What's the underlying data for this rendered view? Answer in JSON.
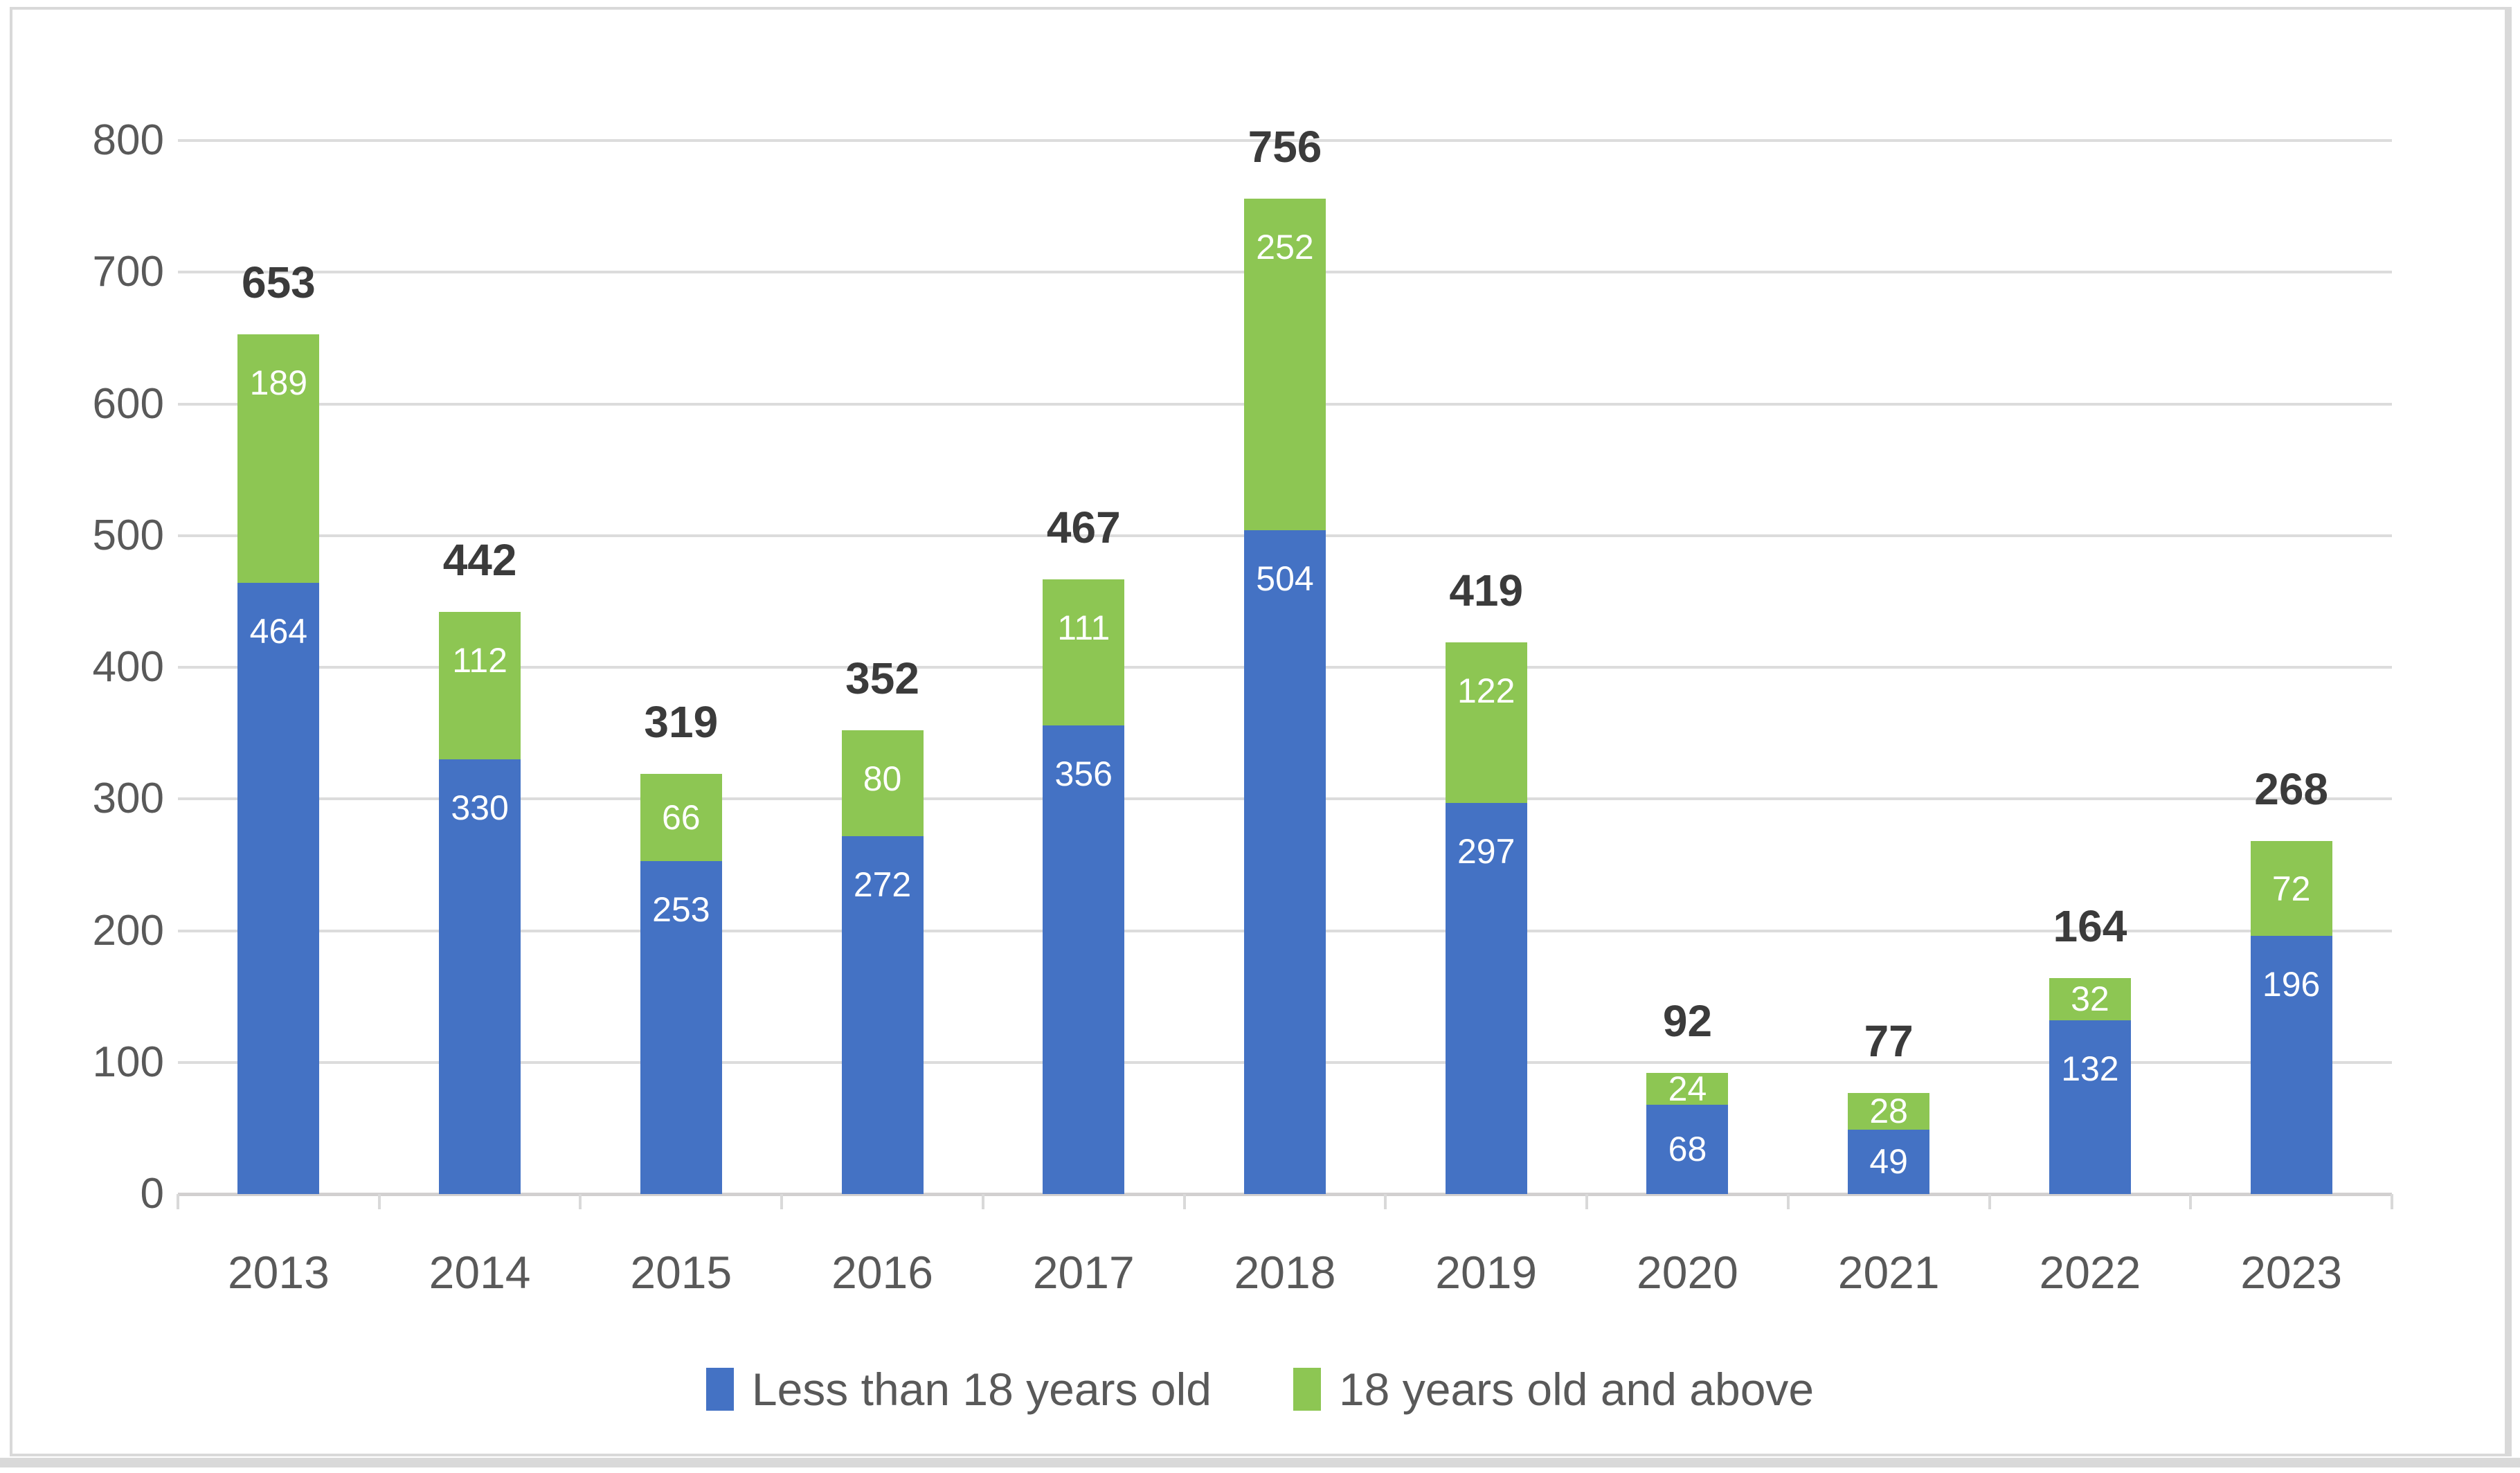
{
  "chart_data": {
    "type": "bar",
    "stacked": true,
    "title": "",
    "xlabel": "",
    "ylabel": "",
    "grid": "horizontal",
    "legend_position": "bottom",
    "ylim": [
      0,
      800
    ],
    "ytick_step": 100,
    "categories": [
      "2013",
      "2014",
      "2015",
      "2016",
      "2017",
      "2018",
      "2019",
      "2020",
      "2021",
      "2022",
      "2023"
    ],
    "series": [
      {
        "name": "Less than 18 years old",
        "color": "#4472C4",
        "values": [
          464,
          330,
          253,
          272,
          356,
          504,
          297,
          68,
          49,
          132,
          196
        ]
      },
      {
        "name": "18 years old and above",
        "color": "#8DC653",
        "values": [
          189,
          112,
          66,
          80,
          111,
          252,
          122,
          24,
          28,
          32,
          72
        ]
      }
    ],
    "totals": [
      653,
      442,
      319,
      352,
      467,
      756,
      419,
      92,
      77,
      164,
      268
    ]
  },
  "colors": {
    "gridline": "#DCDCDC",
    "axis_line": "#D2D0D0",
    "axis_text": "#595959",
    "total_text": "#3B3B3B",
    "segment_text": "#FFFFFF",
    "frame_border": "#D9D9D9"
  }
}
